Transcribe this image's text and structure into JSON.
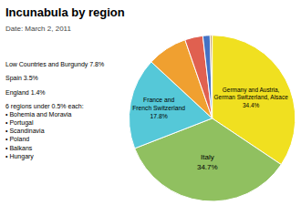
{
  "chart_data": {
    "type": "pie",
    "title": "Incunabula by region",
    "subtitle": "Date: March 2, 2011",
    "categories": [
      "Germany and Austria,\nGerman Switzerland, Alsace\n34.4%",
      "Italy\n34.7%",
      "France and\nFrench Switzerland\n17.8%",
      "Low Countries and Burgundy 7.8%",
      "Spain 3.5%",
      "England 1.4%",
      "6 regions under 0.5% each:\n• Bohemia and Moravia\n• Portugal\n• Scandinavia\n• Poland\n• Balkans\n• Hungary"
    ],
    "values": [
      34.4,
      34.7,
      17.8,
      7.8,
      3.5,
      1.4,
      0.4
    ],
    "colors": [
      "#f0e020",
      "#90c060",
      "#55c8d8",
      "#f0a030",
      "#e06050",
      "#4472c4",
      "#c8a060"
    ]
  }
}
